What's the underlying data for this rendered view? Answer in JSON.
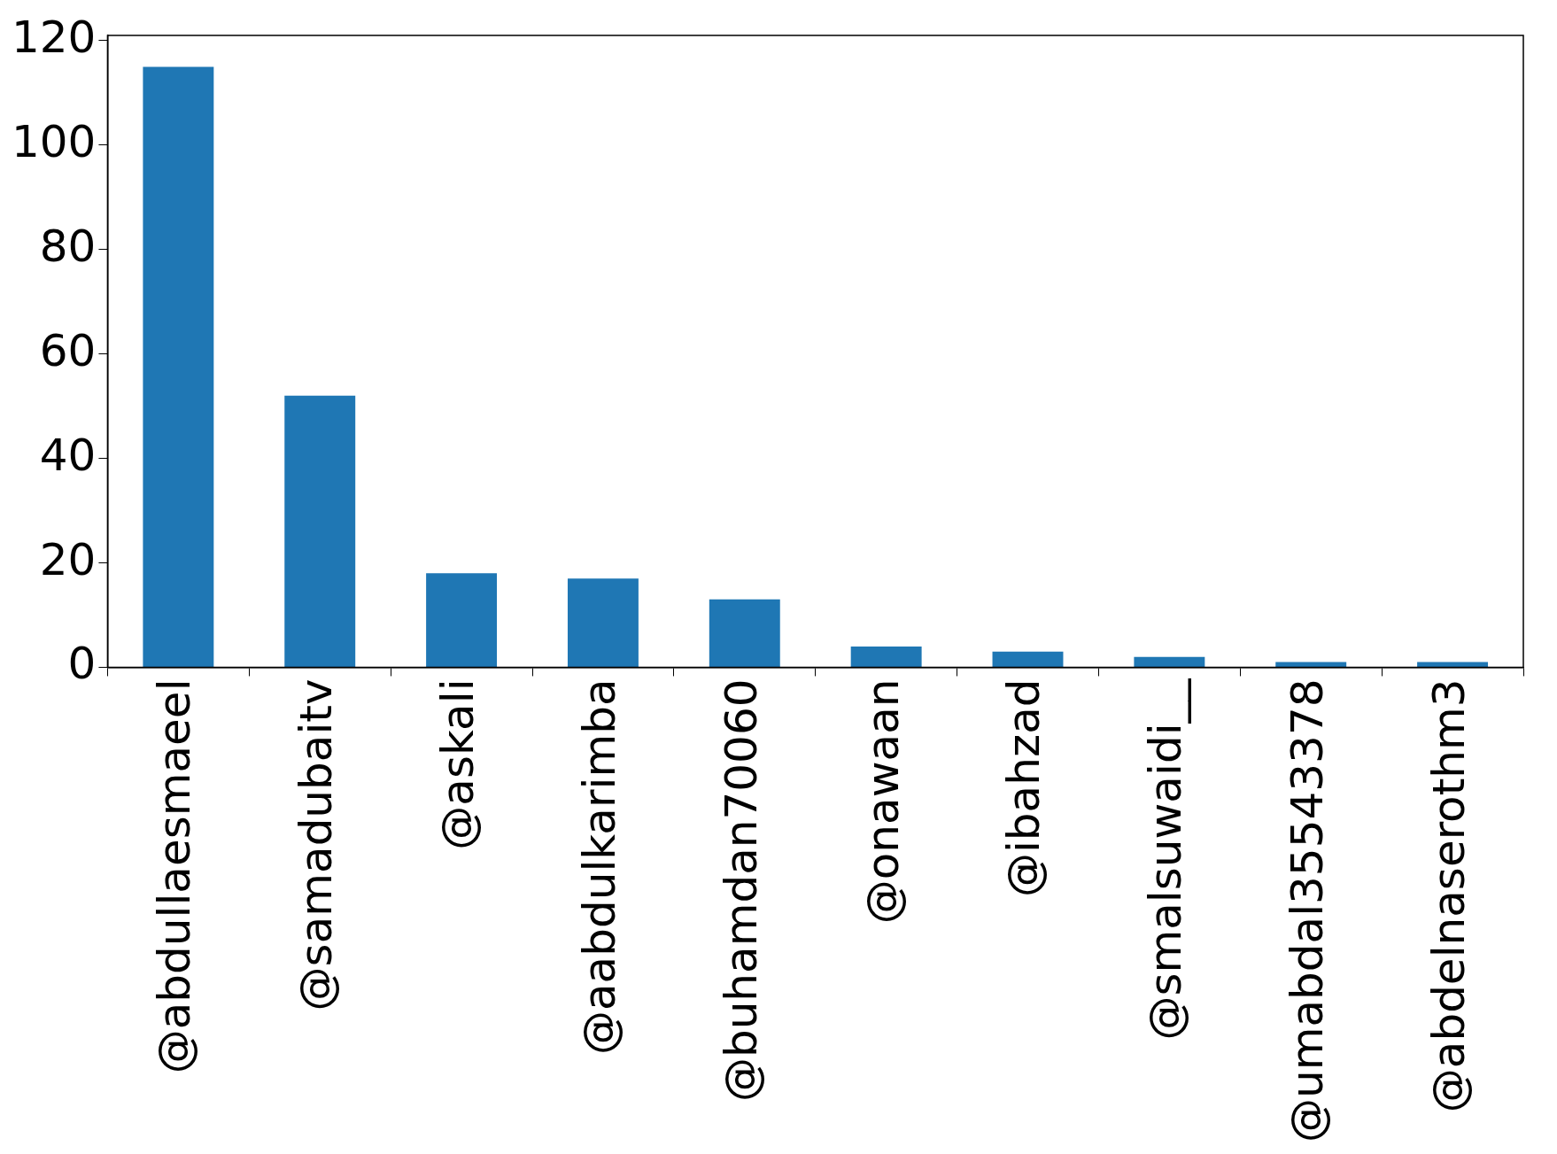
{
  "chart_data": {
    "type": "bar",
    "categories": [
      "@abdullaesmaeel",
      "@samadubaitv",
      "@askali",
      "@aabdulkarimba",
      "@buhamdan70060",
      "@onawaan",
      "@ibahzad",
      "@smalsuwaidi__",
      "@umabdal35543378",
      "@abdelnaserothm3"
    ],
    "values": [
      115,
      52,
      18,
      17,
      13,
      4,
      3,
      2,
      1,
      1
    ],
    "color": "#1f77b4",
    "ylim": [
      0,
      121
    ],
    "yticks": [
      0,
      20,
      40,
      60,
      80,
      100,
      120
    ],
    "grid": false,
    "legend": false
  }
}
